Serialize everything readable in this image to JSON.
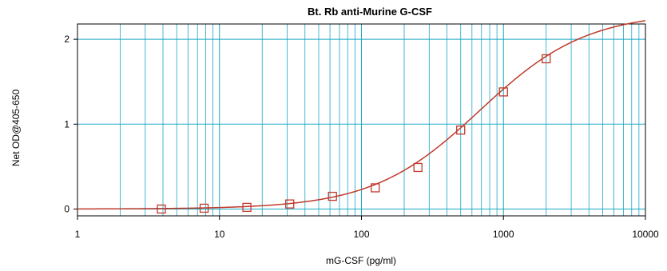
{
  "chart_data": {
    "type": "scatter",
    "title": "Bt. Rb anti-Murine G-CSF",
    "xlabel": "mG-CSF (pg/ml)",
    "ylabel": "Net OD@405-650",
    "x_scale": "log",
    "xlim": [
      1,
      10000
    ],
    "ylim": [
      -0.08,
      2.18
    ],
    "grid": true,
    "x_ticks": [
      {
        "value": 1,
        "label": "1"
      },
      {
        "value": 10,
        "label": "10"
      },
      {
        "value": 100,
        "label": "100"
      },
      {
        "value": 1000,
        "label": "1000"
      },
      {
        "value": 10000,
        "label": "10000"
      }
    ],
    "y_ticks": [
      {
        "value": 0,
        "label": "0"
      },
      {
        "value": 1,
        "label": "1"
      },
      {
        "value": 2,
        "label": "2"
      }
    ],
    "series": [
      {
        "marker": "open-square",
        "x": [
          3.9,
          7.8,
          15.6,
          31.25,
          62.5,
          125,
          250,
          500,
          1000,
          2000
        ],
        "y": [
          0.0,
          0.01,
          0.02,
          0.06,
          0.15,
          0.25,
          0.49,
          0.93,
          1.38,
          1.77
        ]
      }
    ],
    "fit_curve": {
      "type": "4PL",
      "bottom": 0.0,
      "top": 2.32,
      "ec50": 680,
      "hill": 1.15
    },
    "colors": {
      "grid": "#1aa7c4",
      "series": "#c0392b",
      "axis": "#000000"
    }
  }
}
